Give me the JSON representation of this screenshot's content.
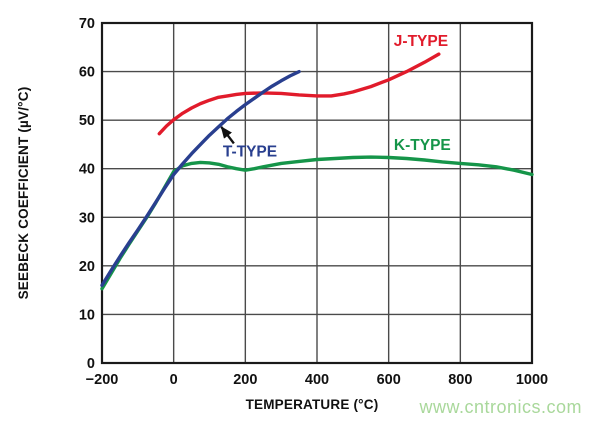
{
  "figure": {
    "background": "#ffffff",
    "frame_color": "#1a1a1a",
    "grid_color": "#4a4a4a",
    "text_color": "#111111"
  },
  "watermark": {
    "text": "www.cntronics.com",
    "color": "#a9d89b"
  },
  "chart_data": {
    "type": "line",
    "title": "",
    "xlabel": "TEMPERATURE (°C)",
    "ylabel": "SEEBECK COEFFICIENT (µV/°C)",
    "xlim": [
      -200,
      1000
    ],
    "ylim": [
      0,
      70
    ],
    "xticks": [
      -200,
      0,
      200,
      400,
      600,
      800,
      1000
    ],
    "yticks": [
      0,
      10,
      20,
      30,
      40,
      50,
      60,
      70
    ],
    "grid": true,
    "legend_position": "inline-labels",
    "series": [
      {
        "name": "J-TYPE",
        "color": "#e11b2b",
        "label_pos": {
          "x": 690,
          "y": 66.3
        },
        "points": [
          [
            -40,
            47.2
          ],
          [
            -20,
            48.8
          ],
          [
            0,
            50.1
          ],
          [
            25,
            51.4
          ],
          [
            50,
            52.5
          ],
          [
            75,
            53.4
          ],
          [
            100,
            54.1
          ],
          [
            125,
            54.7
          ],
          [
            150,
            55.0
          ],
          [
            175,
            55.3
          ],
          [
            200,
            55.5
          ],
          [
            250,
            55.6
          ],
          [
            300,
            55.5
          ],
          [
            350,
            55.2
          ],
          [
            400,
            55.0
          ],
          [
            440,
            55.0
          ],
          [
            475,
            55.4
          ],
          [
            500,
            55.8
          ],
          [
            550,
            56.9
          ],
          [
            600,
            58.3
          ],
          [
            650,
            60.0
          ],
          [
            700,
            61.9
          ],
          [
            740,
            63.6
          ]
        ]
      },
      {
        "name": "K-TYPE",
        "color": "#159549",
        "label_pos": {
          "x": 694,
          "y": 44.9
        },
        "points": [
          [
            -200,
            15.3
          ],
          [
            -175,
            18.4
          ],
          [
            -150,
            21.5
          ],
          [
            -125,
            24.4
          ],
          [
            -100,
            27.2
          ],
          [
            -75,
            30.0
          ],
          [
            -50,
            33.0
          ],
          [
            -25,
            36.2
          ],
          [
            0,
            39.4
          ],
          [
            25,
            40.6
          ],
          [
            50,
            41.1
          ],
          [
            75,
            41.3
          ],
          [
            100,
            41.2
          ],
          [
            125,
            40.9
          ],
          [
            150,
            40.4
          ],
          [
            175,
            40.0
          ],
          [
            200,
            39.7
          ],
          [
            225,
            40.0
          ],
          [
            250,
            40.4
          ],
          [
            300,
            41.1
          ],
          [
            350,
            41.5
          ],
          [
            400,
            41.9
          ],
          [
            450,
            42.1
          ],
          [
            500,
            42.3
          ],
          [
            550,
            42.4
          ],
          [
            600,
            42.3
          ],
          [
            650,
            42.1
          ],
          [
            700,
            41.8
          ],
          [
            750,
            41.4
          ],
          [
            800,
            41.1
          ],
          [
            850,
            40.8
          ],
          [
            900,
            40.4
          ],
          [
            950,
            39.7
          ],
          [
            1000,
            38.8
          ]
        ]
      },
      {
        "name": "T-TYPE",
        "color": "#293f8f",
        "label_pos": {
          "x": 213,
          "y": 43.5
        },
        "points": [
          [
            -200,
            16.0
          ],
          [
            -175,
            19.0
          ],
          [
            -150,
            21.9
          ],
          [
            -125,
            24.7
          ],
          [
            -100,
            27.4
          ],
          [
            -75,
            30.2
          ],
          [
            -50,
            33.1
          ],
          [
            -25,
            36.0
          ],
          [
            0,
            38.8
          ],
          [
            25,
            41.0
          ],
          [
            50,
            43.1
          ],
          [
            75,
            45.0
          ],
          [
            100,
            46.9
          ],
          [
            125,
            48.6
          ],
          [
            150,
            50.3
          ],
          [
            175,
            51.8
          ],
          [
            200,
            53.2
          ],
          [
            225,
            54.5
          ],
          [
            250,
            55.8
          ],
          [
            275,
            57.0
          ],
          [
            300,
            58.1
          ],
          [
            325,
            59.1
          ],
          [
            350,
            60.0
          ]
        ]
      }
    ],
    "annotation_arrow": {
      "color": "#111111",
      "from": {
        "x": 168,
        "y": 45.2
      },
      "to": {
        "x": 133,
        "y": 48.6
      }
    }
  }
}
